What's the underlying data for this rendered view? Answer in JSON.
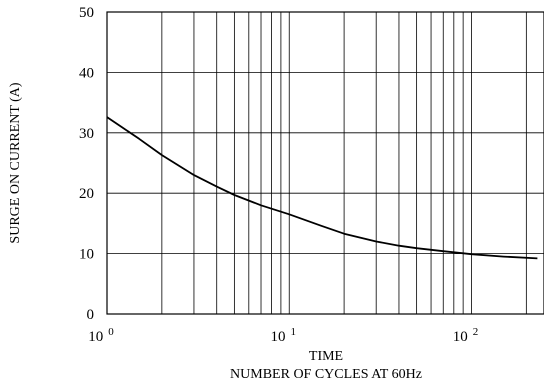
{
  "chart_data": {
    "type": "line",
    "title": "",
    "xlabel": "TIME",
    "xlabel_2": "NUMBER OF CYCLES AT 60Hz",
    "ylabel": "SURGE ON CURRENT (A)",
    "x_scale": "log",
    "xlim": [
      1,
      250
    ],
    "ylim": [
      0,
      50
    ],
    "grid": true,
    "x_ticks": [
      {
        "value": 1,
        "base": "10",
        "exp": "0"
      },
      {
        "value": 10,
        "base": "10",
        "exp": "1"
      },
      {
        "value": 100,
        "base": "10",
        "exp": "2"
      }
    ],
    "y_ticks": [
      {
        "value": 0,
        "label": "0"
      },
      {
        "value": 10,
        "label": "10"
      },
      {
        "value": 20,
        "label": "20"
      },
      {
        "value": 30,
        "label": "30"
      },
      {
        "value": 40,
        "label": "40"
      },
      {
        "value": 50,
        "label": "50"
      }
    ],
    "series": [
      {
        "x": [
          1,
          1.5,
          2,
          3,
          4,
          5,
          7,
          10,
          15,
          20,
          30,
          40,
          50,
          70,
          100,
          150,
          230
        ],
        "y": [
          32.6,
          29.0,
          26.3,
          23.0,
          21.1,
          19.7,
          18.0,
          16.5,
          14.6,
          13.3,
          12.0,
          11.3,
          10.9,
          10.4,
          9.9,
          9.5,
          9.2
        ]
      }
    ]
  }
}
